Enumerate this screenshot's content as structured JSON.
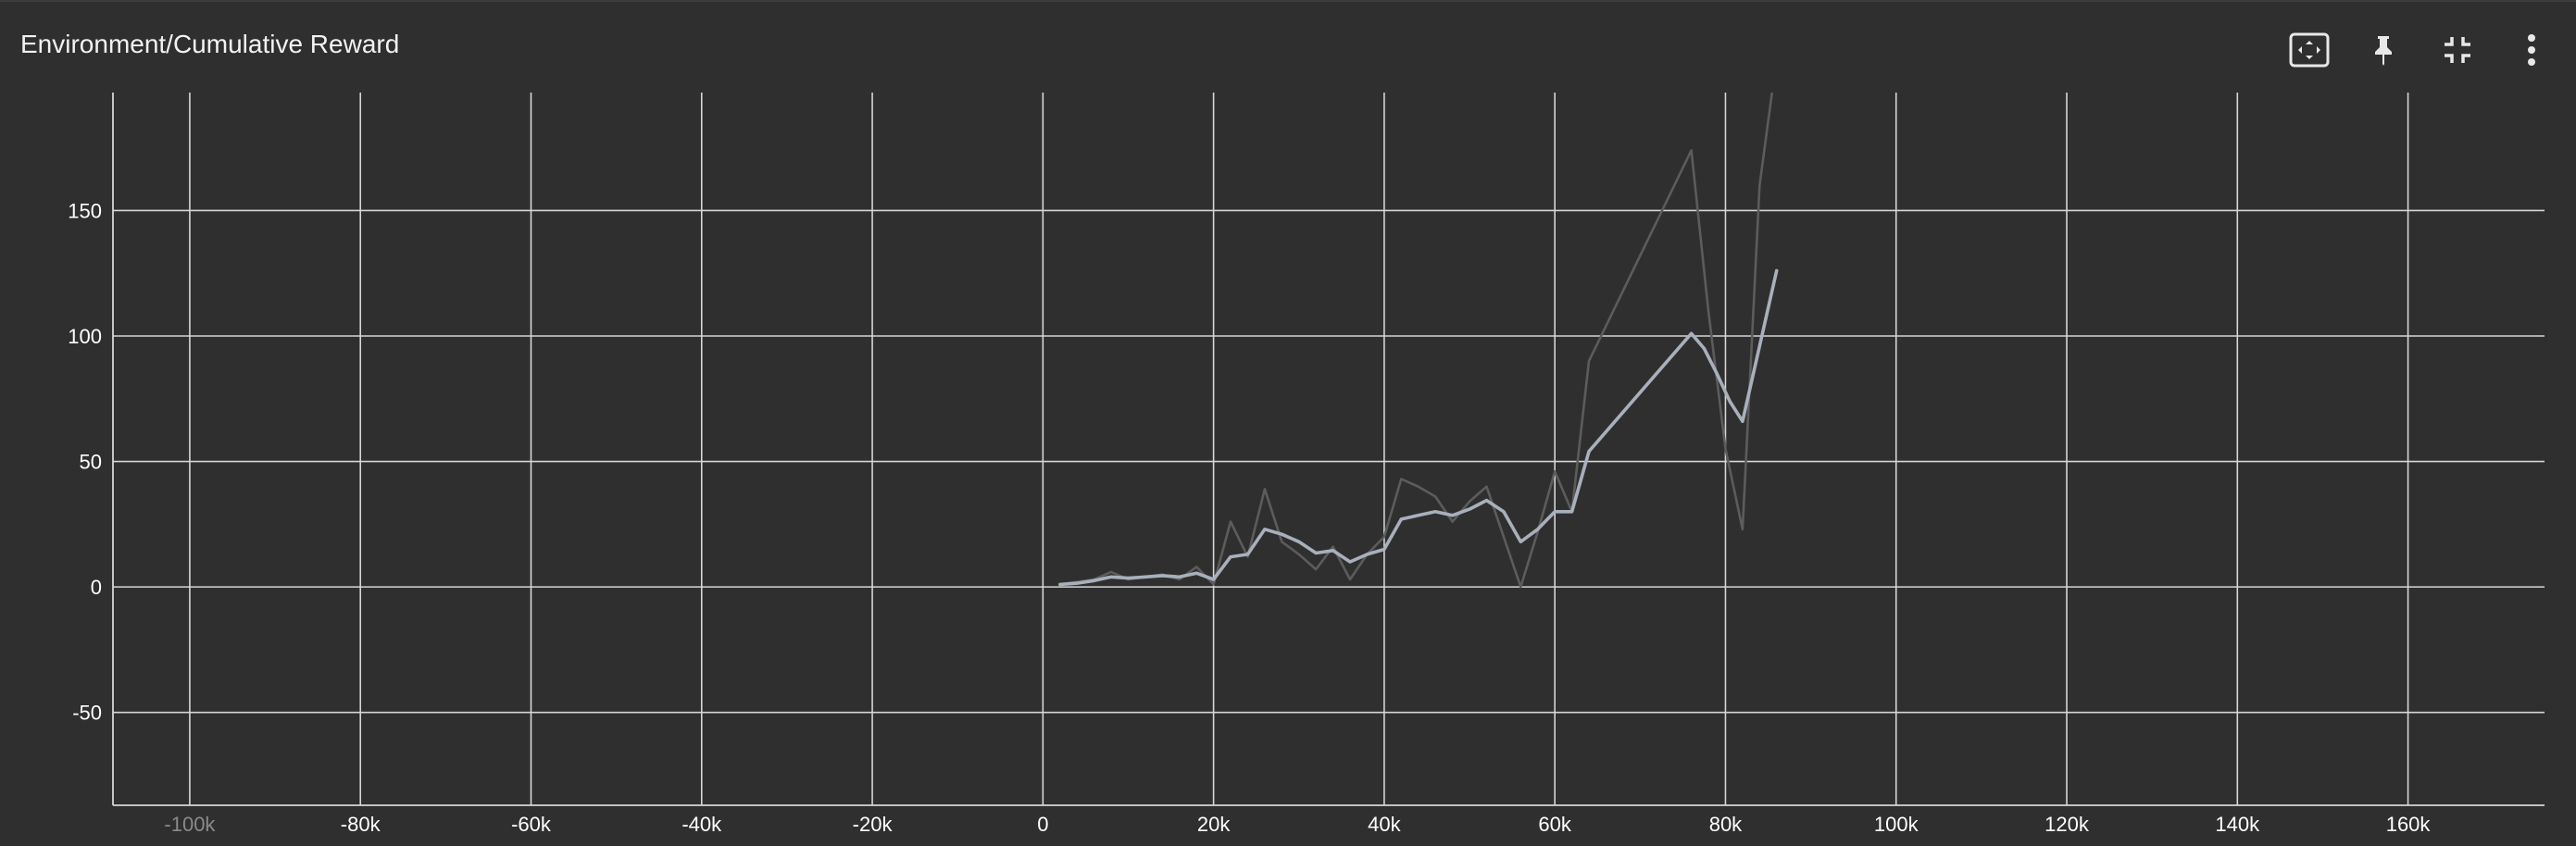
{
  "header": {
    "title": "Environment/Cumulative Reward",
    "icons": [
      "fit-to-data-icon",
      "pin-icon",
      "collapse-icon",
      "more-vert-icon"
    ]
  },
  "colors": {
    "background": "#2f2f2f",
    "grid": "#d6d6d6",
    "smoothed_series": "#a9b0bc",
    "raw_series": "#5c5c5c",
    "text": "#ffffff",
    "dim_text": "#8a8a8a"
  },
  "chart_data": {
    "type": "line",
    "title": "Environment/Cumulative Reward",
    "xlabel": "",
    "ylabel": "",
    "xlim": [
      -109000,
      176000
    ],
    "ylim": [
      -87,
      197
    ],
    "grid": true,
    "legend": "none",
    "x_ticks": [
      -100000,
      -80000,
      -60000,
      -40000,
      -20000,
      0,
      20000,
      40000,
      60000,
      80000,
      100000,
      120000,
      140000,
      160000
    ],
    "x_tick_labels": [
      "-100k",
      "-80k",
      "-60k",
      "-40k",
      "-20k",
      "0",
      "20k",
      "40k",
      "60k",
      "80k",
      "100k",
      "120k",
      "140k",
      "160k"
    ],
    "x_tick_dimmed": [
      true,
      false,
      false,
      false,
      false,
      false,
      false,
      false,
      false,
      false,
      false,
      false,
      false,
      false
    ],
    "y_ticks": [
      -50,
      0,
      50,
      100,
      150
    ],
    "y_tick_labels": [
      "-50",
      "0",
      "50",
      "100",
      "150"
    ],
    "series": [
      {
        "role": "raw",
        "x": [
          2000,
          4000,
          6000,
          8000,
          10000,
          12000,
          14000,
          16000,
          18000,
          20000,
          22000,
          24000,
          26000,
          28000,
          30000,
          32000,
          34000,
          36000,
          38000,
          40000,
          42000,
          44000,
          46000,
          48000,
          50000,
          52000,
          54000,
          56000,
          58000,
          60000,
          62000,
          64000,
          76000,
          78000,
          80000,
          82000,
          84000,
          85500
        ],
        "y": [
          1,
          2,
          3,
          6,
          3,
          4,
          5,
          3,
          8,
          1,
          26,
          12,
          39,
          18,
          13,
          7,
          16,
          3,
          13,
          20,
          43,
          40,
          36,
          26,
          34,
          40,
          20,
          0,
          22,
          46,
          30,
          90,
          174,
          110,
          55,
          23,
          160,
          198
        ]
      },
      {
        "role": "smoothed",
        "x": [
          2000,
          4000,
          6000,
          8000,
          10000,
          12000,
          14000,
          16000,
          18000,
          20000,
          22000,
          24000,
          26000,
          28000,
          30000,
          32000,
          34000,
          36000,
          38000,
          40000,
          42000,
          44000,
          46000,
          48000,
          50000,
          52000,
          54000,
          56000,
          58000,
          60000,
          62000,
          64000,
          76000,
          77500,
          79000,
          80500,
          82000,
          86000
        ],
        "y": [
          1,
          1.5,
          2.5,
          4,
          3.5,
          4,
          4.5,
          4,
          5.5,
          3,
          12,
          13,
          23,
          21,
          18,
          13.5,
          14.5,
          10,
          13,
          15,
          27,
          28.5,
          30,
          28.5,
          31,
          34.5,
          30,
          18,
          23,
          30,
          30,
          54,
          101,
          95,
          85,
          74,
          66,
          126
        ]
      }
    ]
  }
}
